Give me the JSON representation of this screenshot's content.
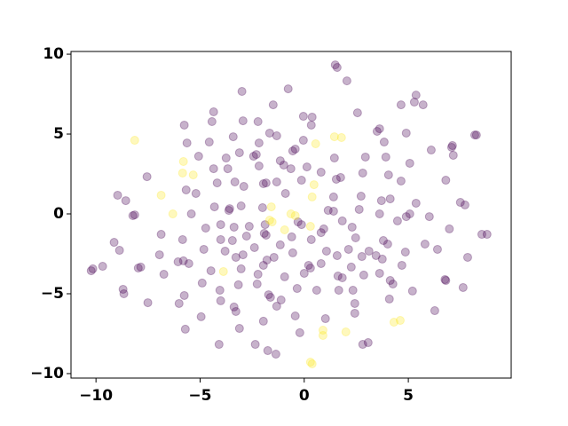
{
  "chart_data": {
    "type": "scatter",
    "xlim": [
      -11.2,
      9.94
    ],
    "ylim": [
      -10.28,
      10.17
    ],
    "xticks": [
      {
        "value": -10,
        "label": "−10"
      },
      {
        "value": -5,
        "label": "−5"
      },
      0,
      5
    ],
    "yticks": [
      {
        "value": -10,
        "label": "−10"
      },
      {
        "value": -5,
        "label": "−5"
      },
      0,
      5,
      10
    ],
    "grid": false,
    "series": [
      {
        "color": "#440154",
        "x": [
          1.49,
          1.58,
          2.05,
          -2.99,
          -0.77,
          -4.35,
          -1.49,
          2.56,
          4.65,
          5.37,
          5.29,
          5.71,
          -4.43,
          -2.94,
          -2.22,
          -0.04,
          0.38,
          -5.76,
          -1.66,
          0.34,
          3.5,
          3.62,
          4.9,
          8.27,
          8.19,
          -3.41,
          -1.32,
          -5.63,
          -4.56,
          -2.17,
          -0.43,
          -0.55,
          -0.04,
          3.84,
          7.12,
          7.08,
          6.1,
          7.16,
          -5.07,
          -3.75,
          -3.11,
          -2.43,
          -2.3,
          -1.15,
          -0.98,
          0.13,
          1.45,
          2.94,
          3.92,
          5.07,
          -7.55,
          -4.35,
          -3.67,
          -2.17,
          -0.64,
          0.81,
          1.75,
          2.81,
          4.05,
          6.8,
          -4.18,
          -3.33,
          -2.9,
          -1.96,
          -1.83,
          -1.32,
          -0.13,
          1.54,
          4.65,
          -8.96,
          -8.57,
          -5.67,
          -5.2,
          -0.9,
          1.41,
          2.73,
          3.71,
          4.13,
          5.37,
          7.5,
          7.72,
          -8.23,
          -8.14,
          -5.42,
          -4.31,
          -3.62,
          -3.58,
          -3.03,
          -2.0,
          1.15,
          1.41,
          2.64,
          3.62,
          4.9,
          5.07,
          6.01,
          -4.73,
          -4.01,
          -3.37,
          -2.64,
          -1.88,
          -0.3,
          -0.13,
          0.94,
          1.83,
          2.3,
          4.48,
          6.97,
          -6.87,
          -5.84,
          -4.01,
          -3.45,
          -2.77,
          -1.83,
          -1.92,
          -0.6,
          0.34,
          0.81,
          2.47,
          3.8,
          4.01,
          5.8,
          8.53,
          8.78,
          -9.13,
          -8.87,
          -4.82,
          -3.8,
          -2.39,
          -1.15,
          -0.55,
          1.07,
          2.13,
          2.77,
          3.11,
          4.86,
          6.4,
          7.85,
          -6.95,
          -3.28,
          -2.94,
          -1.79,
          -1.45,
          1.58,
          3.45,
          3.75,
          -6.06,
          -5.8,
          -5.54,
          -1.96,
          0.21,
          0.3,
          0.81,
          2.26,
          4.69,
          -10.23,
          -10.15,
          -9.68,
          -7.97,
          -7.85,
          -6.74,
          -4.48,
          -3.03,
          -2.22,
          -0.94,
          0,
          1.62,
          1.83,
          2.86,
          3.62,
          4.13,
          4.26,
          6.8,
          6.76,
          -4.9,
          -3.16,
          -2.26,
          -0.34,
          0.6,
          2.34,
          5.2,
          7.63,
          -8.7,
          -8.66,
          -5.76,
          -4.05,
          -4.01,
          -1.71,
          -1.62,
          -1.11,
          1.66,
          4.09,
          -7.51,
          -6.01,
          2.43,
          -3.37,
          -3.28,
          -1.32,
          6.27,
          -4.95,
          2.43,
          -0.43,
          -1.96,
          1.02,
          -5.71,
          -3.11,
          -0.21,
          -4.09,
          -2.35,
          2.81,
          3.07,
          -1.75,
          -1.36
        ],
        "values": [
          9.33,
          9.17,
          8.33,
          7.67,
          7.83,
          6.39,
          6.83,
          6.33,
          6.83,
          7.44,
          7.0,
          6.83,
          5.78,
          5.83,
          5.78,
          6.11,
          6.06,
          5.56,
          5.06,
          5.56,
          5.17,
          5.33,
          5.06,
          4.94,
          4.94,
          4.83,
          4.89,
          4.44,
          4.5,
          4.44,
          4.06,
          3.94,
          4.61,
          4.5,
          4.28,
          4.17,
          4.0,
          3.67,
          3.61,
          3.5,
          3.83,
          3.61,
          3.72,
          3.33,
          3.06,
          2.94,
          3.5,
          3.56,
          3.56,
          3.17,
          2.33,
          2.83,
          2.83,
          3.0,
          2.83,
          2.61,
          2.28,
          2.56,
          2.44,
          2.11,
          1.94,
          2.0,
          1.72,
          1.89,
          1.94,
          2.0,
          2.11,
          2.17,
          2.06,
          1.17,
          0.83,
          1.5,
          1.28,
          1.28,
          1.06,
          1.11,
          0.83,
          0.94,
          0.67,
          0.72,
          0.56,
          -0.11,
          -0.06,
          0,
          0.44,
          0.22,
          0.33,
          0.5,
          0.39,
          0.22,
          0.17,
          0.28,
          0,
          -0.17,
          0,
          -0.17,
          -0.89,
          -0.67,
          -0.83,
          -0.78,
          -0.67,
          -0.5,
          -0.67,
          -0.94,
          -0.44,
          -0.83,
          -0.44,
          -0.94,
          -1.28,
          -1.61,
          -1.61,
          -1.67,
          -1.39,
          -1.33,
          -1.22,
          -1.44,
          -1.61,
          -1.17,
          -1.5,
          -1.67,
          -1.89,
          -1.89,
          -1.28,
          -1.28,
          -1.78,
          -2.28,
          -2.22,
          -2.33,
          -2.11,
          -1.94,
          -2.44,
          -2.33,
          -2.22,
          -2.67,
          -2.33,
          -2.39,
          -2.22,
          -2.72,
          -2.56,
          -2.72,
          -2.56,
          -2.89,
          -2.72,
          -2.61,
          -2.61,
          -2.83,
          -3.0,
          -2.94,
          -3.11,
          -3.22,
          -3.22,
          -3.39,
          -3.11,
          -3.33,
          -3.22,
          -3.56,
          -3.44,
          -3.28,
          -3.39,
          -3.33,
          -3.78,
          -3.56,
          -3.44,
          -3.78,
          -3.94,
          -3.72,
          -3.89,
          -4.0,
          -3.83,
          -3.72,
          -4.17,
          -4.39,
          -4.17,
          -4.11,
          -4.33,
          -4.44,
          -4.39,
          -4.67,
          -4.78,
          -4.78,
          -4.83,
          -4.61,
          -4.72,
          -5.0,
          -5.11,
          -4.78,
          -5.44,
          -5.06,
          -5.22,
          -5.39,
          -4.78,
          -5.33,
          -5.56,
          -5.61,
          -5.61,
          -5.83,
          -6.11,
          -5.78,
          -6.06,
          -6.44,
          -6.22,
          -6.39,
          -6.72,
          -6.56,
          -7.22,
          -7.17,
          -7.44,
          -8.17,
          -8.17,
          -8.17,
          -8.06,
          -8.56,
          -8.78
        ]
      },
      {
        "color": "#fde725",
        "x": [
          -8.14,
          -5.8,
          -5.84,
          -5.33,
          -6.87,
          -6.31,
          0.55,
          1.45,
          1.79,
          0.47,
          0.38,
          -1.58,
          -1.66,
          -1.54,
          -0.64,
          -0.43,
          -0.94,
          0.3,
          -3.88,
          0.9,
          0.9,
          2.0,
          0.3,
          0.38,
          4.31,
          4.61
        ],
        "values": [
          4.61,
          3.28,
          2.56,
          2.44,
          1.17,
          0,
          4.39,
          4.83,
          4.78,
          1.83,
          1.06,
          0.44,
          -0.39,
          -0.5,
          0,
          -0.11,
          -1.0,
          -0.78,
          -3.61,
          -7.28,
          -7.61,
          -7.39,
          -9.28,
          -9.39,
          -6.78,
          -6.67
        ]
      }
    ]
  }
}
